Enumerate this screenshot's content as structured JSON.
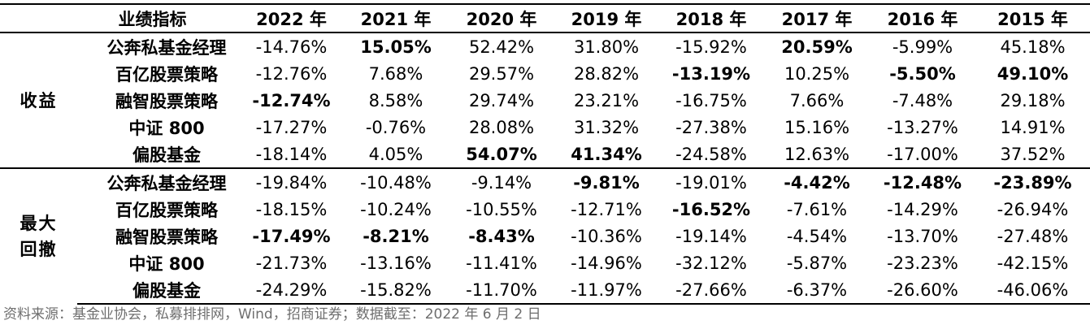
{
  "table": {
    "header_metric": "业绩指标",
    "years": [
      "2022 年",
      "2021 年",
      "2020 年",
      "2019 年",
      "2018 年",
      "2017 年",
      "2016 年",
      "2015 年"
    ],
    "groups": [
      {
        "name": "收益",
        "rows": [
          {
            "label": "公奔私基金经理",
            "values": [
              "-14.76%",
              "15.05%",
              "52.42%",
              "31.80%",
              "-15.92%",
              "20.59%",
              "-5.99%",
              "45.18%"
            ],
            "bold": [
              false,
              true,
              false,
              false,
              false,
              true,
              false,
              false
            ]
          },
          {
            "label": "百亿股票策略",
            "values": [
              "-12.76%",
              "7.68%",
              "29.57%",
              "28.82%",
              "-13.19%",
              "10.25%",
              "-5.50%",
              "49.10%"
            ],
            "bold": [
              false,
              false,
              false,
              false,
              true,
              false,
              true,
              true
            ]
          },
          {
            "label": "融智股票策略",
            "values": [
              "-12.74%",
              "8.58%",
              "29.74%",
              "23.21%",
              "-16.75%",
              "7.66%",
              "-7.48%",
              "29.18%"
            ],
            "bold": [
              true,
              false,
              false,
              false,
              false,
              false,
              false,
              false
            ]
          },
          {
            "label": "中证 800",
            "values": [
              "-17.27%",
              "-0.76%",
              "28.08%",
              "31.32%",
              "-27.38%",
              "15.16%",
              "-13.27%",
              "14.91%"
            ],
            "bold": [
              false,
              false,
              false,
              false,
              false,
              false,
              false,
              false
            ]
          },
          {
            "label": "偏股基金",
            "values": [
              "-18.14%",
              "4.05%",
              "54.07%",
              "41.34%",
              "-24.58%",
              "12.63%",
              "-17.00%",
              "37.52%"
            ],
            "bold": [
              false,
              false,
              true,
              true,
              false,
              false,
              false,
              false
            ]
          }
        ]
      },
      {
        "name": "最大回撤",
        "rows": [
          {
            "label": "公奔私基金经理",
            "values": [
              "-19.84%",
              "-10.48%",
              "-9.14%",
              "-9.81%",
              "-19.01%",
              "-4.42%",
              "-12.48%",
              "-23.89%"
            ],
            "bold": [
              false,
              false,
              false,
              true,
              false,
              true,
              true,
              true
            ]
          },
          {
            "label": "百亿股票策略",
            "values": [
              "-18.15%",
              "-10.24%",
              "-10.55%",
              "-12.71%",
              "-16.52%",
              "-7.61%",
              "-14.29%",
              "-26.94%"
            ],
            "bold": [
              false,
              false,
              false,
              false,
              true,
              false,
              false,
              false
            ]
          },
          {
            "label": "融智股票策略",
            "values": [
              "-17.49%",
              "-8.21%",
              "-8.43%",
              "-10.36%",
              "-19.14%",
              "-4.54%",
              "-13.70%",
              "-27.48%"
            ],
            "bold": [
              true,
              true,
              true,
              false,
              false,
              false,
              false,
              false
            ]
          },
          {
            "label": "中证 800",
            "values": [
              "-21.73%",
              "-13.16%",
              "-11.41%",
              "-14.96%",
              "-32.12%",
              "-5.87%",
              "-23.23%",
              "-42.15%"
            ],
            "bold": [
              false,
              false,
              false,
              false,
              false,
              false,
              false,
              false
            ]
          },
          {
            "label": "偏股基金",
            "values": [
              "-24.29%",
              "-15.82%",
              "-11.70%",
              "-11.97%",
              "-27.66%",
              "-6.37%",
              "-26.60%",
              "-46.06%"
            ],
            "bold": [
              false,
              false,
              false,
              false,
              false,
              false,
              false,
              false
            ]
          }
        ]
      }
    ]
  },
  "source_note": "资料来源：基金业协会，私募排排网，Wind，招商证券；数据截至：2022 年 6 月 2 日"
}
